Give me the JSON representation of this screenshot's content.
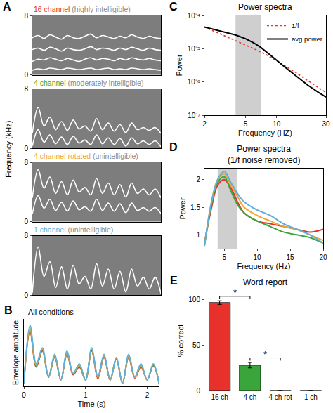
{
  "chart_data": [
    {
      "panel": "A",
      "type": "line",
      "ylabel": "Frequency (kHz)",
      "x": [
        0,
        0.1,
        0.2,
        0.3,
        0.4,
        0.5,
        0.6,
        0.7,
        0.8,
        0.9,
        1,
        1.1,
        1.2,
        1.3,
        1.4,
        1.5,
        1.6,
        1.7,
        1.8,
        1.9,
        2,
        2.1,
        2.2
      ],
      "xlim": [
        0,
        2.2
      ],
      "ylim": [
        0,
        8
      ],
      "yticks": [
        0,
        8
      ],
      "tick_labels": "y",
      "grid": false,
      "subplots": [
        {
          "title": "16 channel",
          "subtitle": "(highly intelligible)",
          "color": "#e8312a",
          "series": [
            {
              "color": "#ffffff",
              "values": [
                0.6,
                0.8,
                0.7,
                0.9,
                0.8,
                0.7,
                0.9,
                0.8,
                0.7,
                0.8,
                0.9,
                0.7,
                0.8,
                0.9,
                0.7,
                0.8,
                0.7,
                0.9,
                0.8,
                0.7,
                0.8,
                0.7,
                0.6
              ]
            },
            {
              "color": "#ffffff",
              "values": [
                1.8,
                2.1,
                2.0,
                2.3,
                2.1,
                1.9,
                2.2,
                2.0,
                1.8,
                2.1,
                2.3,
                2.0,
                2.2,
                2.1,
                1.9,
                2.2,
                2.0,
                2.3,
                2.1,
                2.0,
                2.2,
                2.0,
                1.9
              ]
            },
            {
              "color": "#ffffff",
              "values": [
                3.4,
                3.6,
                3.3,
                3.7,
                3.5,
                3.2,
                3.6,
                3.4,
                3.3,
                3.5,
                3.8,
                3.4,
                3.6,
                3.5,
                3.3,
                3.6,
                3.4,
                3.7,
                3.5,
                3.3,
                3.6,
                3.4,
                3.3
              ]
            },
            {
              "color": "#ffffff",
              "values": [
                5.0,
                5.3,
                4.9,
                5.4,
                5.1,
                4.8,
                5.3,
                5.0,
                4.9,
                5.2,
                5.5,
                5.0,
                5.3,
                5.1,
                4.9,
                5.2,
                5.0,
                5.4,
                5.1,
                4.9,
                5.2,
                5.0,
                4.9
              ]
            }
          ]
        },
        {
          "title": "4 channel",
          "subtitle": "(moderately intelligible)",
          "color": "#3aa53b",
          "series": [
            {
              "color": "#ffffff",
              "values": [
                0.3,
                2.5,
                0.8,
                1.8,
                0.6,
                1.5,
                0.5,
                1.6,
                0.7,
                1.1,
                0.5,
                1.8,
                0.6,
                1.4,
                0.5,
                1.3,
                0.3,
                1.4,
                0.6,
                1.0,
                0.5,
                1.0,
                0.2
              ]
            },
            {
              "color": "#ffffff",
              "values": [
                2.0,
                5.5,
                3.0,
                4.2,
                2.5,
                3.6,
                2.4,
                3.8,
                2.6,
                3.0,
                2.3,
                4.0,
                2.5,
                3.4,
                2.3,
                3.2,
                2.1,
                3.4,
                2.5,
                2.8,
                2.4,
                2.8,
                2.0
              ]
            }
          ]
        },
        {
          "title": "4 channel rotated",
          "subtitle": "(unintelligible)",
          "color": "#f3a533",
          "series": [
            {
              "color": "#ffffff",
              "values": [
                1.0,
                3.5,
                1.8,
                3.0,
                1.5,
                2.6,
                1.4,
                2.8,
                1.6,
                2.0,
                1.4,
                3.0,
                1.5,
                2.5,
                1.4,
                2.4,
                1.2,
                2.5,
                1.5,
                1.9,
                1.4,
                1.9,
                1.1
              ]
            },
            {
              "color": "#ffffff",
              "values": [
                3.2,
                7.0,
                4.5,
                6.0,
                3.8,
                5.4,
                3.6,
                5.6,
                4.0,
                4.6,
                3.6,
                5.8,
                3.8,
                5.2,
                3.6,
                5.0,
                3.3,
                5.2,
                3.8,
                4.4,
                3.6,
                4.4,
                3.2
              ]
            }
          ]
        },
        {
          "title": "1 channel",
          "subtitle": "(unintelligible)",
          "color": "#5bb0dc",
          "series": [
            {
              "color": "#ffffff",
              "values": [
                0.3,
                6.5,
                2.5,
                4.5,
                1.0,
                3.8,
                0.8,
                4.0,
                1.5,
                2.5,
                0.8,
                4.2,
                1.2,
                3.5,
                0.8,
                3.2,
                0.4,
                3.5,
                1.2,
                2.4,
                0.8,
                2.4,
                0.2
              ]
            }
          ]
        }
      ]
    },
    {
      "panel": "B",
      "type": "line",
      "title": "All conditions",
      "xlabel": "Time (s)",
      "ylabel": "Envelope amplitude",
      "x": [
        0,
        0.1,
        0.2,
        0.3,
        0.4,
        0.5,
        0.6,
        0.7,
        0.8,
        0.9,
        1,
        1.1,
        1.2,
        1.3,
        1.4,
        1.5,
        1.6,
        1.7,
        1.8,
        1.9,
        2,
        2.1,
        2.2
      ],
      "xlim": [
        0,
        2.2
      ],
      "xticks": [
        0,
        1,
        2
      ],
      "ylim": [
        0,
        1.05
      ],
      "tick_labels": "x",
      "grid": false,
      "series": [
        {
          "color": "#e8312a",
          "values": [
            0.05,
            0.85,
            0.3,
            0.55,
            0.15,
            0.45,
            0.1,
            0.5,
            0.18,
            0.3,
            0.1,
            0.55,
            0.12,
            0.45,
            0.1,
            0.42,
            0.05,
            0.45,
            0.13,
            0.3,
            0.1,
            0.32,
            0.02
          ]
        },
        {
          "color": "#3aa53b",
          "values": [
            0.05,
            0.88,
            0.32,
            0.57,
            0.14,
            0.47,
            0.1,
            0.52,
            0.19,
            0.32,
            0.1,
            0.57,
            0.14,
            0.47,
            0.1,
            0.43,
            0.05,
            0.47,
            0.14,
            0.32,
            0.1,
            0.33,
            0.02
          ]
        },
        {
          "color": "#f3a533",
          "values": [
            0.05,
            0.9,
            0.33,
            0.58,
            0.15,
            0.48,
            0.1,
            0.53,
            0.2,
            0.33,
            0.1,
            0.58,
            0.14,
            0.48,
            0.1,
            0.44,
            0.05,
            0.48,
            0.14,
            0.33,
            0.1,
            0.34,
            0.02
          ]
        },
        {
          "color": "#5bb0dc",
          "values": [
            0.05,
            0.95,
            0.35,
            0.6,
            0.15,
            0.5,
            0.1,
            0.55,
            0.2,
            0.35,
            0.1,
            0.6,
            0.15,
            0.5,
            0.1,
            0.45,
            0.05,
            0.5,
            0.15,
            0.35,
            0.1,
            0.35,
            0.02
          ]
        }
      ]
    },
    {
      "panel": "C",
      "type": "line",
      "title": "Power spectra",
      "xlabel": "Frequency (HZ)",
      "ylabel": "Power",
      "log": true,
      "grid": false,
      "legend": "upper right",
      "x": [
        2,
        3,
        4,
        5,
        6,
        7,
        8,
        10,
        12,
        15,
        20,
        25,
        30
      ],
      "xlim": [
        2,
        30
      ],
      "xticks": [
        2,
        5,
        10,
        30
      ],
      "ylim": [
        1e-07,
        0.0001
      ],
      "yticks": [
        {
          "value": 1e-07,
          "label": "10⁻⁷"
        },
        {
          "value": 1e-06,
          "label": "10⁻⁶"
        },
        {
          "value": 1e-05,
          "label": "10⁻⁵"
        },
        {
          "value": 0.0001,
          "label": "10⁻⁴"
        }
      ],
      "band": [
        4,
        7
      ],
      "series": [
        {
          "name": "1/f",
          "color": "#e8312a",
          "line_style": "dotted",
          "values": [
            4.5e-05,
            2.6e-05,
            1.8e-05,
            1.3e-05,
            1e-05,
            8e-06,
            6.5e-06,
            4.3e-06,
            3.1e-06,
            2e-06,
            1.1e-06,
            7e-07,
            4.8e-07
          ]
        },
        {
          "name": "avg power",
          "color": "#000000",
          "line_style": "solid",
          "values": [
            4.5e-05,
            3.3e-05,
            2.6e-05,
            2e-05,
            1.5e-05,
            1.1e-05,
            8e-06,
            4.5e-06,
            2.8e-06,
            1.6e-06,
            8e-07,
            5e-07,
            3.5e-07
          ]
        }
      ]
    },
    {
      "panel": "D",
      "type": "line",
      "title": "Power spectra",
      "subtitle": "(1/f noise removed)",
      "xlabel": "Frequency (Hz)",
      "ylabel": "Power",
      "grid": false,
      "x": [
        2,
        3,
        4,
        5,
        6,
        7,
        8,
        10,
        12,
        14,
        16,
        18,
        20
      ],
      "xlim": [
        2,
        20
      ],
      "xticks": [
        5,
        10,
        15,
        20
      ],
      "ylim": [
        0.75,
        2.2
      ],
      "yticks": [
        1,
        1.5,
        2
      ],
      "band": [
        4,
        7
      ],
      "series": [
        {
          "color": "#e8312a",
          "values": [
            0.85,
            1.45,
            1.9,
            2.0,
            1.85,
            1.6,
            1.4,
            1.25,
            1.2,
            1.15,
            1.1,
            1.05,
            1.1
          ]
        },
        {
          "color": "#3aa53b",
          "values": [
            0.8,
            1.5,
            1.95,
            2.05,
            1.8,
            1.55,
            1.4,
            1.25,
            1.15,
            1.05,
            1.0,
            0.95,
            0.85
          ]
        },
        {
          "color": "#f3a533",
          "values": [
            0.8,
            1.55,
            2.0,
            2.1,
            1.9,
            1.7,
            1.5,
            1.35,
            1.25,
            1.15,
            1.1,
            1.0,
            0.9
          ]
        },
        {
          "color": "#5bb0dc",
          "values": [
            0.8,
            1.55,
            2.0,
            2.15,
            1.95,
            1.75,
            1.6,
            1.45,
            1.35,
            1.2,
            1.1,
            1.0,
            0.85
          ]
        }
      ]
    },
    {
      "panel": "E",
      "type": "bar",
      "title": "Word report",
      "ylabel": "% correct",
      "grid": false,
      "categories": [
        "16 ch",
        "4 ch",
        "4 ch rot",
        "1 ch"
      ],
      "values": [
        97,
        28,
        0,
        0
      ],
      "errors": [
        2,
        3,
        0,
        0
      ],
      "colors": [
        "#e8312a",
        "#3aa53b",
        "#f3a533",
        "#5bb0dc"
      ],
      "ylim": [
        0,
        110
      ],
      "yticks": [
        0,
        50,
        100
      ],
      "significance": [
        {
          "between": [
            "16 ch",
            "4 ch"
          ],
          "label": "*"
        },
        {
          "between": [
            "4 ch",
            "4 ch rot"
          ],
          "label": "*"
        }
      ]
    }
  ]
}
